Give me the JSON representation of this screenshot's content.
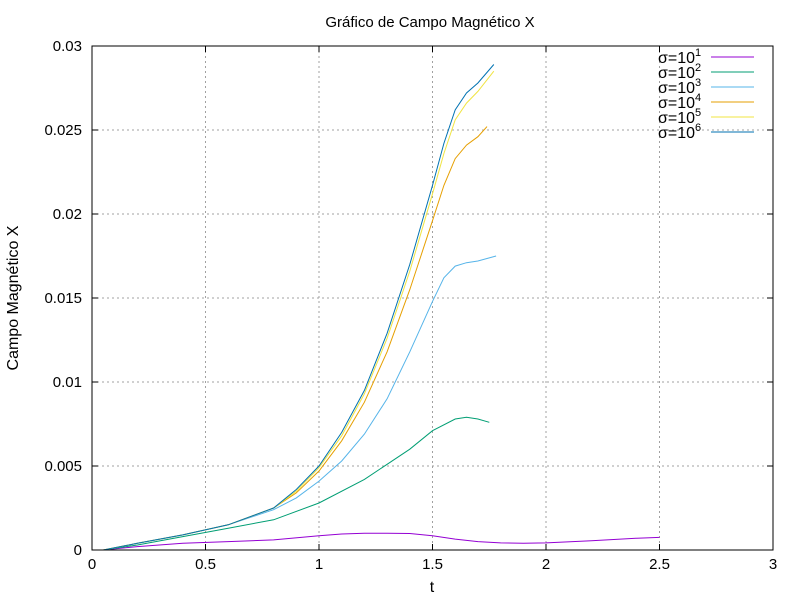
{
  "chart_data": {
    "type": "line",
    "title": "Gráfico de Campo Magnético X",
    "xlabel": "t",
    "ylabel": "Campo Magnético X",
    "xlim": [
      0,
      3
    ],
    "ylim": [
      0,
      0.03
    ],
    "xticks": [
      {
        "value": 0,
        "label": "0"
      },
      {
        "value": 0.5,
        "label": "0.5"
      },
      {
        "value": 1,
        "label": "1"
      },
      {
        "value": 1.5,
        "label": "1.5"
      },
      {
        "value": 2,
        "label": "2"
      },
      {
        "value": 2.5,
        "label": "2.5"
      },
      {
        "value": 3,
        "label": "3"
      }
    ],
    "yticks": [
      {
        "value": 0,
        "label": "0"
      },
      {
        "value": 0.005,
        "label": "0.005"
      },
      {
        "value": 0.01,
        "label": "0.01"
      },
      {
        "value": 0.015,
        "label": "0.015"
      },
      {
        "value": 0.02,
        "label": "0.02"
      },
      {
        "value": 0.025,
        "label": "0.025"
      },
      {
        "value": 0.03,
        "label": "0.03"
      }
    ],
    "grid": true,
    "legend_position": "top-right",
    "series": [
      {
        "name": "σ=10",
        "exponent": "1",
        "color": "#9400d3",
        "x": [
          0.05,
          0.2,
          0.4,
          0.6,
          0.8,
          1.0,
          1.1,
          1.2,
          1.3,
          1.4,
          1.5,
          1.6,
          1.7,
          1.8,
          1.9,
          2.0,
          2.2,
          2.4,
          2.5
        ],
        "y": [
          0.0,
          0.0002,
          0.0004,
          0.0005,
          0.0006,
          0.00085,
          0.00095,
          0.001,
          0.001,
          0.00098,
          0.00085,
          0.00065,
          0.0005,
          0.00042,
          0.0004,
          0.00042,
          0.00055,
          0.0007,
          0.00075
        ]
      },
      {
        "name": "σ=10",
        "exponent": "2",
        "color": "#009e73",
        "x": [
          0.05,
          0.2,
          0.4,
          0.6,
          0.8,
          1.0,
          1.2,
          1.4,
          1.5,
          1.6,
          1.65,
          1.7,
          1.75
        ],
        "y": [
          0.0,
          0.0003,
          0.0008,
          0.0013,
          0.0018,
          0.0028,
          0.0042,
          0.006,
          0.0071,
          0.0078,
          0.0079,
          0.0078,
          0.0076
        ]
      },
      {
        "name": "σ=10",
        "exponent": "3",
        "color": "#56b4e9",
        "x": [
          0.05,
          0.2,
          0.4,
          0.6,
          0.8,
          0.9,
          1.0,
          1.1,
          1.2,
          1.3,
          1.4,
          1.5,
          1.55,
          1.6,
          1.65,
          1.7,
          1.78
        ],
        "y": [
          0.0,
          0.0004,
          0.0009,
          0.0015,
          0.0024,
          0.0031,
          0.0041,
          0.0053,
          0.0069,
          0.009,
          0.0118,
          0.0148,
          0.0162,
          0.0169,
          0.0171,
          0.0172,
          0.0175
        ]
      },
      {
        "name": "σ=10",
        "exponent": "4",
        "color": "#e69f00",
        "x": [
          0.05,
          0.2,
          0.4,
          0.6,
          0.8,
          0.9,
          1.0,
          1.1,
          1.2,
          1.3,
          1.4,
          1.5,
          1.55,
          1.6,
          1.65,
          1.7,
          1.74
        ],
        "y": [
          0.0,
          0.0004,
          0.0009,
          0.0015,
          0.0025,
          0.0034,
          0.0047,
          0.0065,
          0.0088,
          0.0118,
          0.0155,
          0.0196,
          0.0217,
          0.0233,
          0.0241,
          0.0246,
          0.0252
        ]
      },
      {
        "name": "σ=10",
        "exponent": "5",
        "color": "#f0e442",
        "x": [
          0.05,
          0.2,
          0.4,
          0.6,
          0.8,
          0.9,
          1.0,
          1.1,
          1.2,
          1.3,
          1.4,
          1.5,
          1.55,
          1.6,
          1.65,
          1.7,
          1.77
        ],
        "y": [
          0.0,
          0.0004,
          0.0009,
          0.0015,
          0.0025,
          0.0035,
          0.0049,
          0.0068,
          0.0093,
          0.0126,
          0.0166,
          0.0212,
          0.0236,
          0.0256,
          0.0266,
          0.0273,
          0.0285
        ]
      },
      {
        "name": "σ=10",
        "exponent": "6",
        "color": "#0072b2",
        "x": [
          0.05,
          0.2,
          0.4,
          0.6,
          0.8,
          0.9,
          1.0,
          1.1,
          1.2,
          1.3,
          1.4,
          1.5,
          1.55,
          1.6,
          1.65,
          1.7,
          1.77
        ],
        "y": [
          0.0,
          0.0004,
          0.0009,
          0.0015,
          0.0025,
          0.0036,
          0.005,
          0.007,
          0.0095,
          0.0129,
          0.017,
          0.0217,
          0.0242,
          0.0262,
          0.0272,
          0.0278,
          0.0289
        ]
      }
    ]
  }
}
